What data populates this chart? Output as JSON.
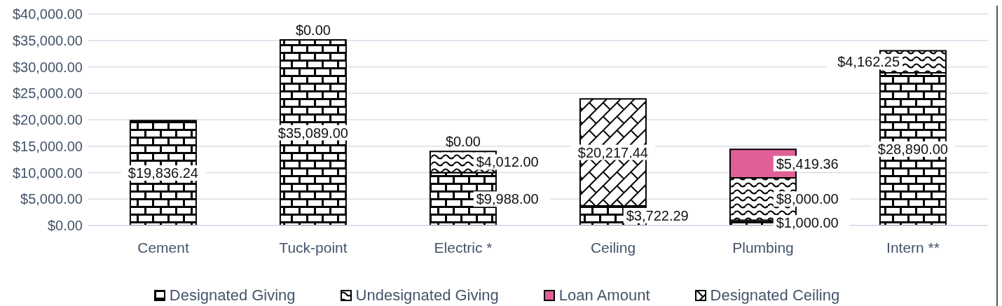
{
  "chart_data": {
    "type": "bar",
    "stacked": true,
    "categories": [
      "Cement",
      "Tuck-point",
      "Electric *",
      "Ceiling",
      "Plumbing",
      "Intern **"
    ],
    "series": [
      {
        "name": "Designated Giving",
        "color": "#000000",
        "values": [
          19836.24,
          35089,
          9988,
          3722.29,
          1000,
          28890
        ],
        "value_labels": [
          "$19,836.24",
          "$35,089.00",
          "$9,988.00",
          "$3,722.29",
          "$1,000.00",
          "$28,890.00"
        ]
      },
      {
        "name": "Undesignated Giving",
        "color": "#000000",
        "values": [
          null,
          0,
          4012,
          null,
          8000,
          4162.25
        ],
        "value_labels": [
          null,
          "$0.00",
          "$4,012.00",
          null,
          "$8,000.00",
          "$4,162.25"
        ]
      },
      {
        "name": "Loan Amount",
        "color": "#e05f98",
        "values": [
          null,
          null,
          0,
          null,
          5419.36,
          null
        ],
        "value_labels": [
          null,
          null,
          "$0.00",
          null,
          "$5,419.36",
          null
        ]
      },
      {
        "name": "Designated Ceiling",
        "color": "#000000",
        "values": [
          null,
          null,
          null,
          20217.44,
          null,
          null
        ],
        "value_labels": [
          null,
          null,
          null,
          "$20,217.44",
          null,
          null
        ]
      }
    ],
    "ylim": [
      0,
      40000
    ],
    "yticks": [
      {
        "value": 0,
        "label": "$0.00"
      },
      {
        "value": 5000,
        "label": "$5,000.00"
      },
      {
        "value": 10000,
        "label": "$10,000.00"
      },
      {
        "value": 15000,
        "label": "$15,000.00"
      },
      {
        "value": 20000,
        "label": "$20,000.00"
      },
      {
        "value": 25000,
        "label": "$25,000.00"
      },
      {
        "value": 30000,
        "label": "$30,000.00"
      },
      {
        "value": 35000,
        "label": "$35,000.00"
      },
      {
        "value": 40000,
        "label": "$40,000.00"
      }
    ],
    "grid": "y",
    "legend": "bottom"
  }
}
